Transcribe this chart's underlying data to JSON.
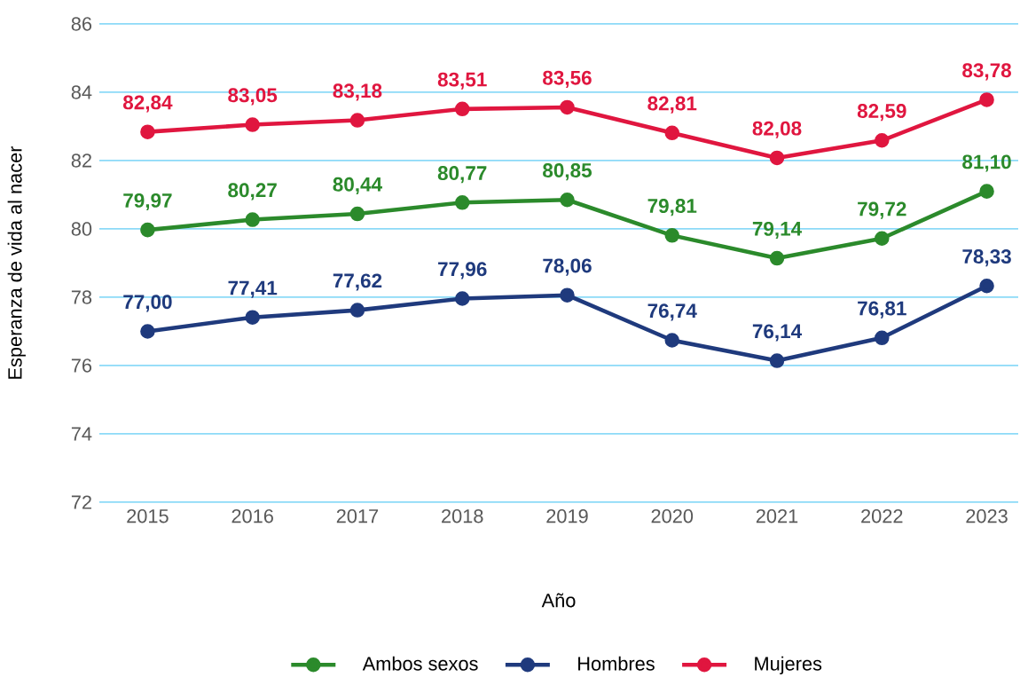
{
  "chart_data": {
    "type": "line",
    "xlabel": "Año",
    "ylabel": "Esperanza de vida al nacer",
    "categories": [
      "2015",
      "2016",
      "2017",
      "2018",
      "2019",
      "2020",
      "2021",
      "2022",
      "2023"
    ],
    "series": [
      {
        "name": "Ambos sexos",
        "color": "#2b8a2b",
        "values": [
          79.97,
          80.27,
          80.44,
          80.77,
          80.85,
          79.81,
          79.14,
          79.72,
          81.1
        ],
        "value_labels": [
          "79,97",
          "80,27",
          "80,44",
          "80,77",
          "80,85",
          "79,81",
          "79,14",
          "79,72",
          "81,10"
        ]
      },
      {
        "name": "Hombres",
        "color": "#1f3a7d",
        "values": [
          77.0,
          77.41,
          77.62,
          77.96,
          78.06,
          76.74,
          76.14,
          76.81,
          78.33
        ],
        "value_labels": [
          "77,00",
          "77,41",
          "77,62",
          "77,96",
          "78,06",
          "76,74",
          "76,14",
          "76,81",
          "78,33"
        ]
      },
      {
        "name": "Mujeres",
        "color": "#e0163f",
        "values": [
          82.84,
          83.05,
          83.18,
          83.51,
          83.56,
          82.81,
          82.08,
          82.59,
          83.78
        ],
        "value_labels": [
          "82,84",
          "83,05",
          "83,18",
          "83,51",
          "83,56",
          "82,81",
          "82,08",
          "82,59",
          "83,78"
        ]
      }
    ],
    "ylim": [
      72,
      86
    ],
    "yticks": [
      72,
      74,
      76,
      78,
      80,
      82,
      84,
      86
    ],
    "grid": "y",
    "legend": "bottom",
    "marker": "circle",
    "line_style": "solid"
  }
}
